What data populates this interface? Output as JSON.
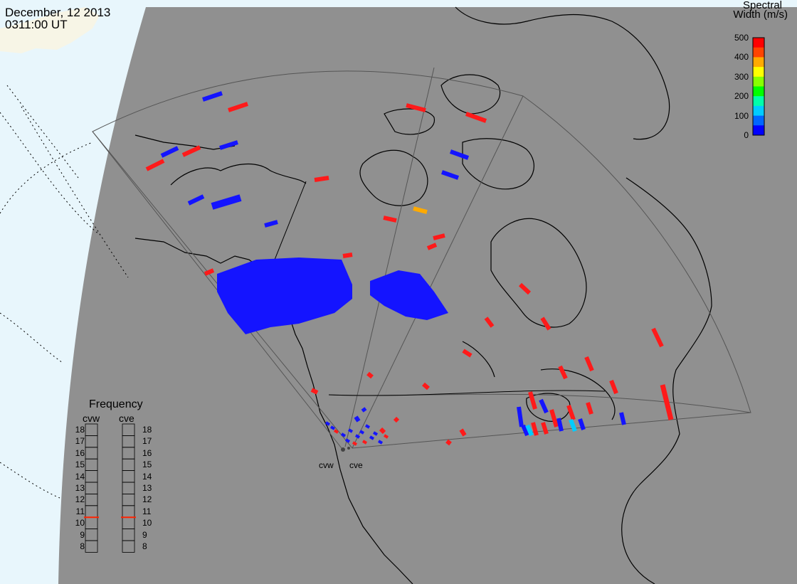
{
  "header": {
    "date": "December, 12 2013",
    "time": "0311:00 UT"
  },
  "colorbar": {
    "title_line1": "Spectral",
    "title_line2": "Width (m/s)",
    "ticks": [
      "500",
      "400",
      "300",
      "200",
      "100",
      "0"
    ],
    "colors_top_to_bottom": [
      "#ff0000",
      "#ff4400",
      "#ffaa00",
      "#ffff00",
      "#88ff00",
      "#00ff00",
      "#00ffaa",
      "#00ccff",
      "#0066ff",
      "#0000ff"
    ]
  },
  "frequency_panel": {
    "title": "Frequency",
    "columns": [
      {
        "label": "cvw",
        "selected": "11"
      },
      {
        "label": "cve",
        "selected": "11"
      }
    ],
    "levels": [
      "18",
      "17",
      "16",
      "15",
      "14",
      "13",
      "12",
      "11",
      "10",
      "9",
      "8"
    ],
    "marker_color": "#ff2200"
  },
  "radars": [
    {
      "label": "cvw"
    },
    {
      "label": "cve"
    }
  ],
  "colors": {
    "ocean": "#e8f6fc",
    "land_gray": "#909090",
    "coast_line": "#000000",
    "fov_line": "#555555",
    "tan_land": "#f7f5e6"
  }
}
